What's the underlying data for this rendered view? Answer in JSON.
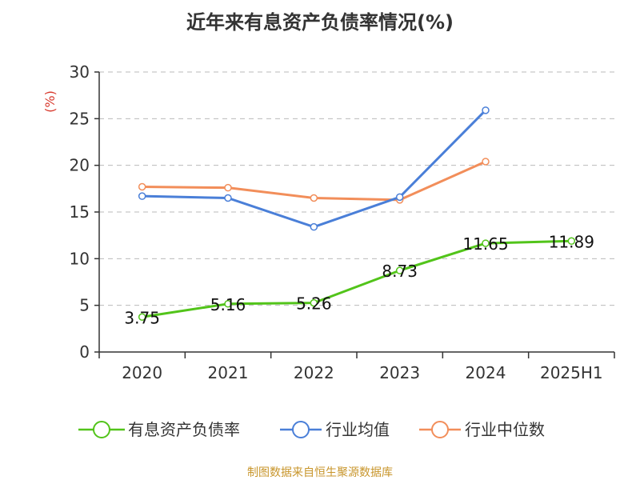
{
  "chart_data": {
    "type": "line",
    "title": "近年来有息资产负债率情况(%)",
    "ylabel": "(%)",
    "xlabel": "",
    "categories": [
      "2020",
      "2021",
      "2022",
      "2023",
      "2024",
      "2025H1"
    ],
    "ylim": [
      0,
      30
    ],
    "yticks": [
      0,
      5,
      10,
      15,
      20,
      25,
      30
    ],
    "grid": true,
    "legend_position": "bottom",
    "series": [
      {
        "name": "有息资产负债率",
        "color": "#52c41a",
        "values": [
          3.75,
          5.16,
          5.26,
          8.73,
          11.65,
          11.89
        ],
        "labels": [
          "3.75",
          "5.16",
          "5.26",
          "8.73",
          "11.65",
          "11.89"
        ]
      },
      {
        "name": "行业均值",
        "color": "#4a7fd8",
        "values": [
          16.7,
          16.5,
          13.4,
          16.6,
          25.9,
          null
        ]
      },
      {
        "name": "行业中位数",
        "color": "#f28e5a",
        "values": [
          17.7,
          17.6,
          16.5,
          16.3,
          20.4,
          null
        ]
      }
    ]
  },
  "footer": {
    "source": "制图数据来自恒生聚源数据库"
  }
}
